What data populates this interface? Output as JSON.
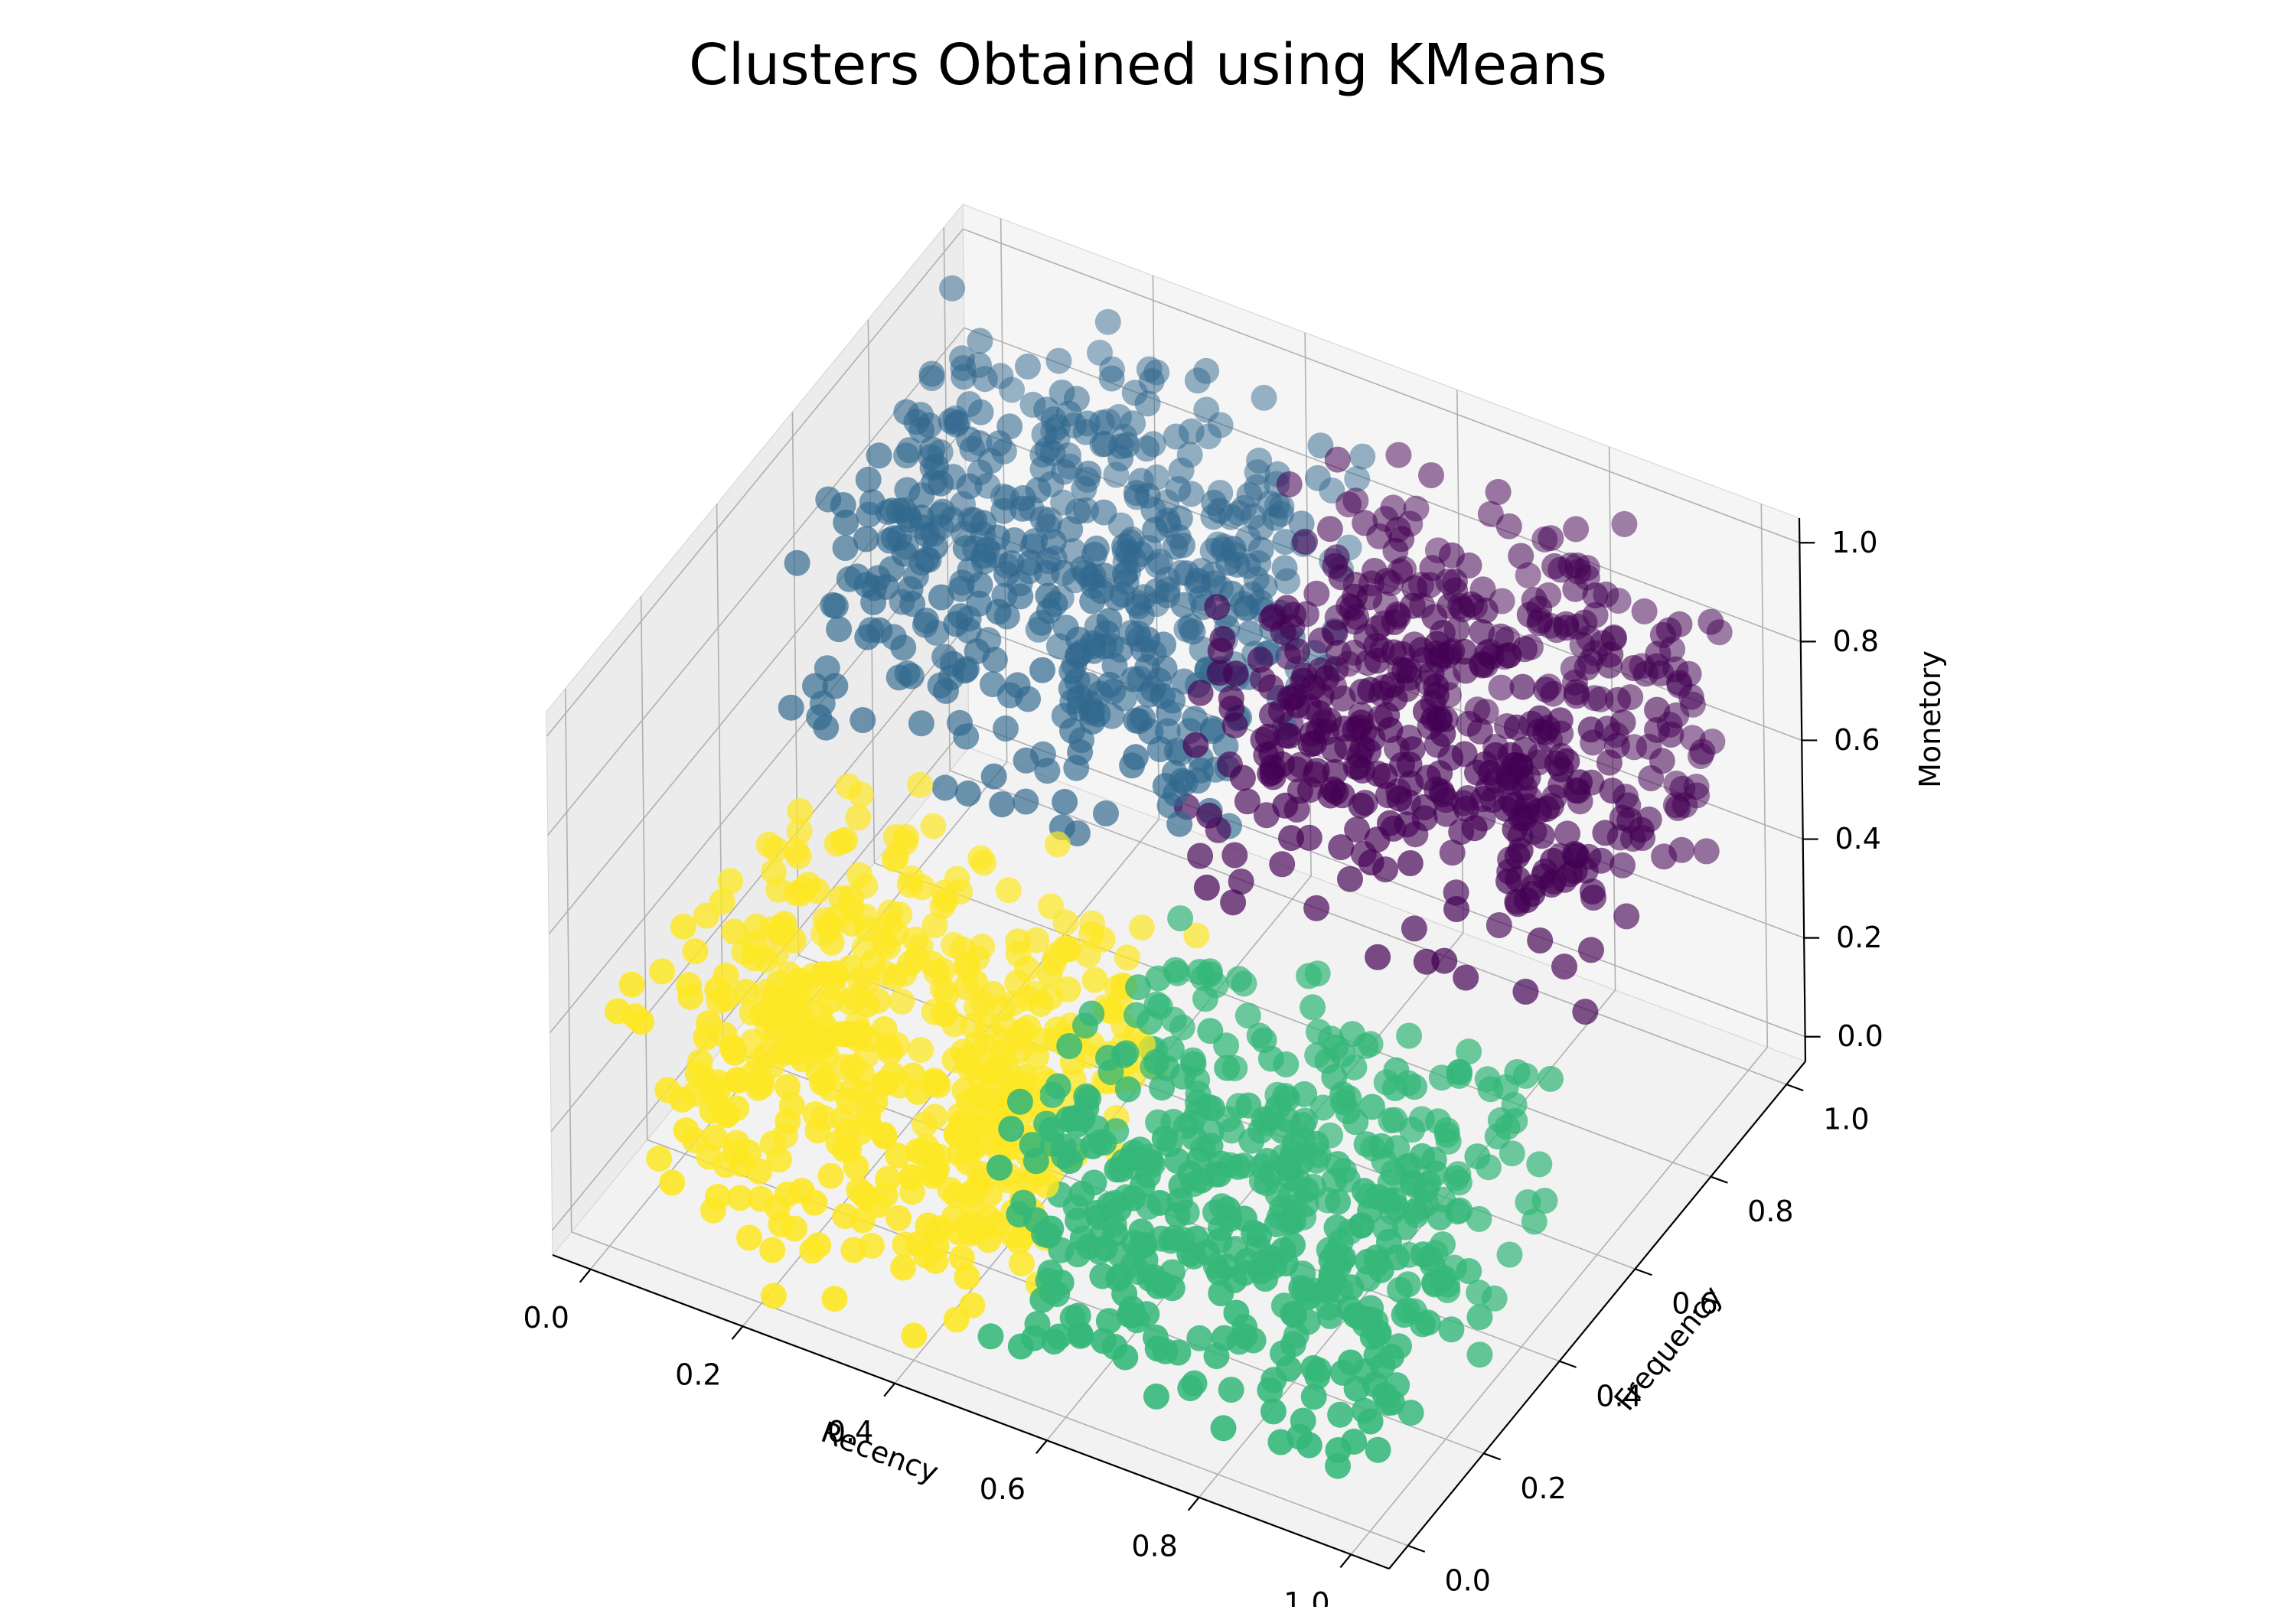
{
  "chart_data": {
    "type": "scatter",
    "projection": "3d",
    "title": "Clusters Obtained using KMeans",
    "xlabel": "Recency",
    "ylabel": "Frequency",
    "zlabel": "Monetory",
    "xlim": [
      0,
      1
    ],
    "ylim": [
      0,
      1
    ],
    "zlim": [
      0,
      1
    ],
    "xticks": [
      "0.0",
      "0.2",
      "0.4",
      "0.6",
      "0.8",
      "1.0"
    ],
    "yticks": [
      "0.0",
      "0.2",
      "0.4",
      "0.6",
      "0.8",
      "1.0"
    ],
    "zticks": [
      "0.0",
      "0.2",
      "0.4",
      "0.6",
      "0.8",
      "1.0"
    ],
    "grid": true,
    "legend": "none",
    "colormap": "viridis",
    "clusters": [
      {
        "label": 0,
        "color": "#440154",
        "x_range": [
          0.5,
          1.0
        ],
        "y_range": [
          0.5,
          1.0
        ],
        "z_range": [
          0.5,
          1.0
        ],
        "approx_points": 500
      },
      {
        "label": 1,
        "color": "#31688e",
        "x_range": [
          0.0,
          0.5
        ],
        "y_range": [
          0.5,
          1.0
        ],
        "z_range": [
          0.5,
          1.0
        ],
        "approx_points": 500
      },
      {
        "label": 2,
        "color": "#35b779",
        "x_range": [
          0.5,
          1.0
        ],
        "y_range": [
          0.0,
          0.5
        ],
        "z_range": [
          0.0,
          0.5
        ],
        "approx_points": 500
      },
      {
        "label": 3,
        "color": "#fde725",
        "x_range": [
          0.0,
          0.5
        ],
        "y_range": [
          0.0,
          0.5
        ],
        "z_range": [
          0.0,
          0.5
        ],
        "approx_points": 500
      }
    ]
  }
}
